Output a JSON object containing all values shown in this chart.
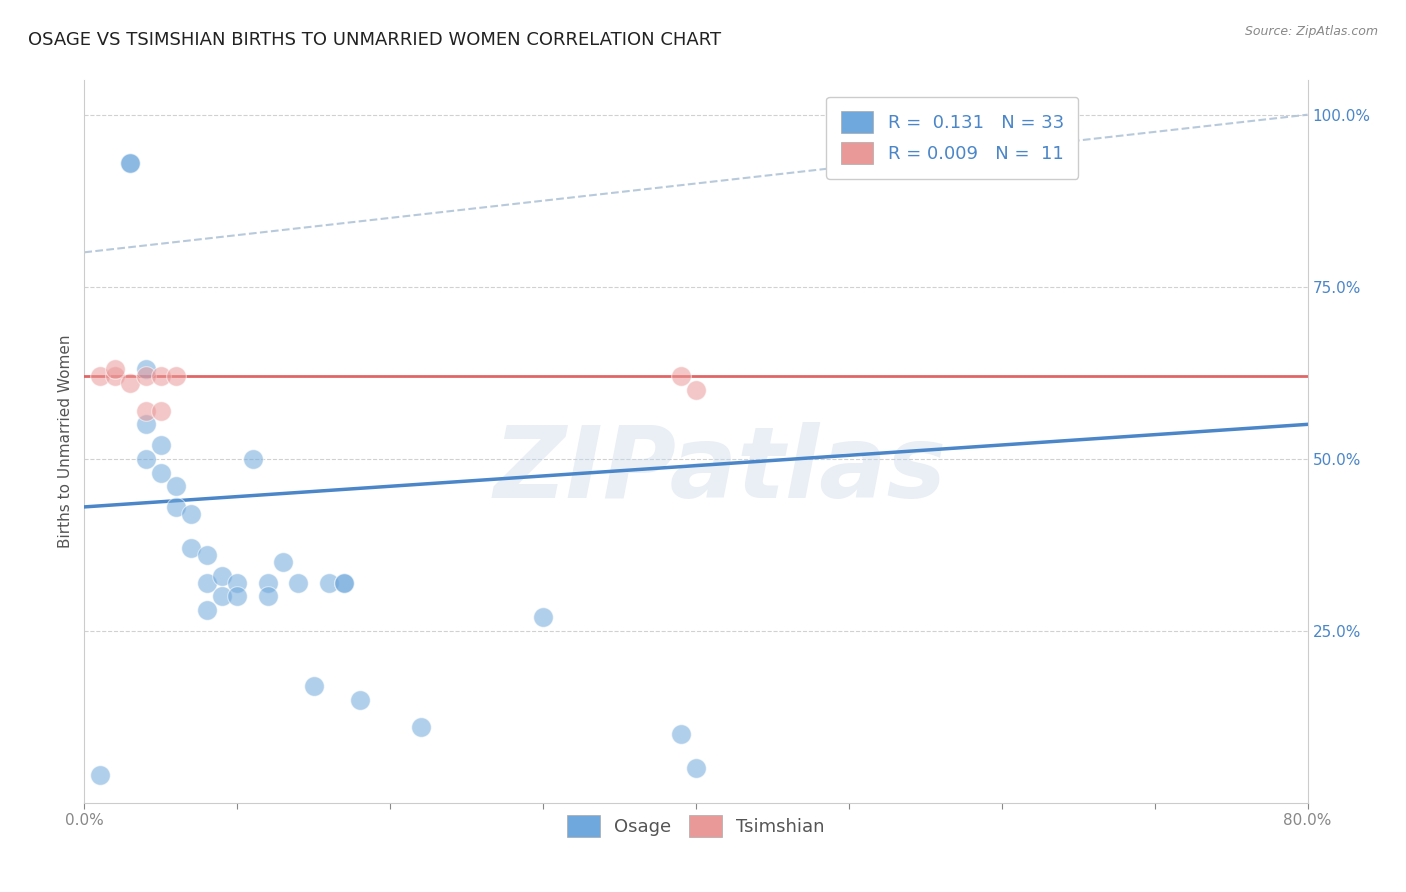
{
  "title": "OSAGE VS TSIMSHIAN BIRTHS TO UNMARRIED WOMEN CORRELATION CHART",
  "source_text": "Source: ZipAtlas.com",
  "ylabel": "Births to Unmarried Women",
  "xlim": [
    0.0,
    0.8
  ],
  "ylim": [
    0.0,
    1.05
  ],
  "xticks": [
    0.0,
    0.1,
    0.2,
    0.3,
    0.4,
    0.5,
    0.6,
    0.7,
    0.8
  ],
  "xticklabels": [
    "0.0%",
    "",
    "",
    "",
    "",
    "",
    "",
    "",
    "80.0%"
  ],
  "yticks_right": [
    0.25,
    0.5,
    0.75,
    1.0
  ],
  "ytick_labels_right": [
    "25.0%",
    "50.0%",
    "75.0%",
    "100.0%"
  ],
  "osage_color": "#6fa8dc",
  "tsimshian_color": "#ea9999",
  "osage_line_color": "#4a86c8",
  "tsimshian_line_color": "#e06666",
  "dashed_line_color": "#b0c4d8",
  "legend_R_osage": "0.131",
  "legend_N_osage": "33",
  "legend_R_tsimshian": "0.009",
  "legend_N_tsimshian": "11",
  "legend_text_color": "#4a86c8",
  "background_color": "#ffffff",
  "watermark_text": "ZIPatlas",
  "osage_scatter_x": [
    0.01,
    0.03,
    0.03,
    0.04,
    0.04,
    0.04,
    0.05,
    0.05,
    0.06,
    0.06,
    0.07,
    0.07,
    0.08,
    0.08,
    0.08,
    0.09,
    0.09,
    0.1,
    0.1,
    0.11,
    0.12,
    0.12,
    0.13,
    0.14,
    0.15,
    0.16,
    0.17,
    0.17,
    0.18,
    0.22,
    0.3,
    0.39,
    0.4
  ],
  "osage_scatter_y": [
    0.04,
    0.93,
    0.93,
    0.63,
    0.55,
    0.5,
    0.52,
    0.48,
    0.46,
    0.43,
    0.42,
    0.37,
    0.36,
    0.32,
    0.28,
    0.33,
    0.3,
    0.32,
    0.3,
    0.5,
    0.32,
    0.3,
    0.35,
    0.32,
    0.17,
    0.32,
    0.32,
    0.32,
    0.15,
    0.11,
    0.27,
    0.1,
    0.05
  ],
  "tsimshian_scatter_x": [
    0.01,
    0.02,
    0.02,
    0.03,
    0.04,
    0.04,
    0.05,
    0.05,
    0.06,
    0.39,
    0.4
  ],
  "tsimshian_scatter_y": [
    0.62,
    0.62,
    0.63,
    0.61,
    0.62,
    0.57,
    0.62,
    0.57,
    0.62,
    0.62,
    0.6
  ],
  "osage_trend_x": [
    0.0,
    0.8
  ],
  "osage_trend_y": [
    0.43,
    0.55
  ],
  "tsimshian_trend_x": [
    0.0,
    0.8
  ],
  "tsimshian_trend_y": [
    0.62,
    0.62
  ],
  "diag_line_x": [
    0.0,
    0.8
  ],
  "diag_line_y": [
    0.8,
    1.0
  ],
  "marker_size": 200,
  "marker_alpha": 0.55,
  "title_fontsize": 13,
  "axis_label_fontsize": 11,
  "tick_fontsize": 11,
  "legend_fontsize": 13
}
